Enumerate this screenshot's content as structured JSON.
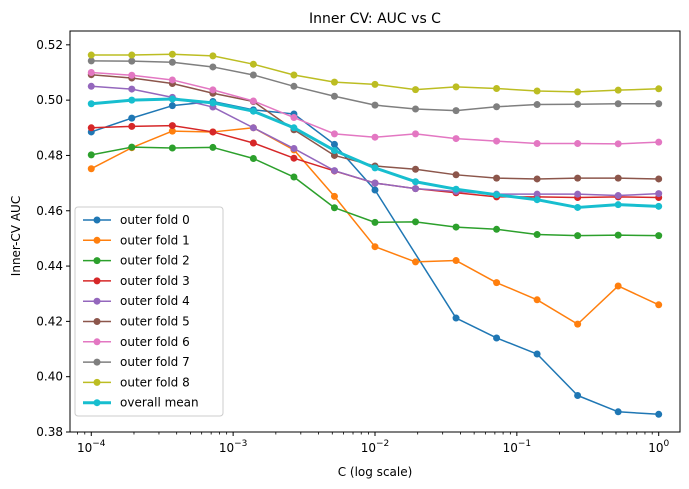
{
  "chart_data": {
    "type": "line",
    "title": "Inner CV: AUC vs C",
    "xlabel": "C (log scale)",
    "ylabel": "Inner-CV AUC",
    "xscale": "log",
    "xlim": [
      7.08e-05,
      1.413
    ],
    "ylim": [
      0.38,
      0.525
    ],
    "x_ticks": [
      {
        "value": 0.0001,
        "base": "10",
        "exp": "−4"
      },
      {
        "value": 0.001,
        "base": "10",
        "exp": "−3"
      },
      {
        "value": 0.01,
        "base": "10",
        "exp": "−2"
      },
      {
        "value": 0.1,
        "base": "10",
        "exp": "−1"
      },
      {
        "value": 1,
        "base": "10",
        "exp": "0"
      }
    ],
    "y_ticks": [
      "0.38",
      "0.40",
      "0.42",
      "0.44",
      "0.46",
      "0.48",
      "0.50",
      "0.52"
    ],
    "grid": false,
    "legend_position": "lower-left",
    "x": [
      0.0001,
      0.000193,
      0.000373,
      0.00072,
      0.001389,
      0.002683,
      0.005179,
      0.01,
      0.019307,
      0.037276,
      0.071969,
      0.13895,
      0.26827,
      0.517947,
      1.0
    ],
    "series": [
      {
        "name": "outer fold 0",
        "color": "#1f77b4",
        "values": [
          0.4885,
          0.4935,
          0.498,
          0.4995,
          0.4965,
          0.495,
          0.484,
          0.4675,
          null,
          0.4212,
          0.414,
          0.4082,
          0.3932,
          0.3873,
          0.3864
        ]
      },
      {
        "name": "outer fold 1",
        "color": "#ff7f0e",
        "values": [
          0.4752,
          0.4828,
          0.4888,
          0.4885,
          0.49,
          0.482,
          0.4652,
          0.447,
          0.4415,
          0.442,
          0.434,
          0.4278,
          0.419,
          0.4328,
          0.426
        ]
      },
      {
        "name": "outer fold 2",
        "color": "#2ca02c",
        "values": [
          0.4802,
          0.483,
          0.4827,
          0.4829,
          0.4789,
          0.4722,
          0.4611,
          0.4558,
          0.456,
          0.4541,
          0.4533,
          0.4514,
          0.451,
          0.4512,
          0.451
        ]
      },
      {
        "name": "outer fold 3",
        "color": "#d62728",
        "values": [
          0.49,
          0.4905,
          0.4908,
          0.4885,
          0.4845,
          0.479,
          0.4744,
          0.47,
          0.468,
          0.4665,
          0.465,
          0.465,
          0.4648,
          0.465,
          0.4648
        ]
      },
      {
        "name": "outer fold 4",
        "color": "#9467bd",
        "values": [
          0.505,
          0.504,
          0.501,
          0.4975,
          0.49,
          0.4825,
          0.4745,
          0.47,
          0.468,
          0.467,
          0.466,
          0.466,
          0.466,
          0.4655,
          0.4662
        ]
      },
      {
        "name": "outer fold 5",
        "color": "#8c564b",
        "values": [
          0.5092,
          0.508,
          0.506,
          0.5025,
          0.4995,
          0.4893,
          0.48,
          0.4762,
          0.475,
          0.473,
          0.4718,
          0.4715,
          0.4718,
          0.4718,
          0.4715
        ]
      },
      {
        "name": "outer fold 6",
        "color": "#e377c2",
        "values": [
          0.51,
          0.509,
          0.5073,
          0.5037,
          0.4997,
          0.4937,
          0.4878,
          0.4866,
          0.4878,
          0.4861,
          0.4852,
          0.4843,
          0.4843,
          0.4842,
          0.4848
        ]
      },
      {
        "name": "outer fold 7",
        "color": "#7f7f7f",
        "values": [
          0.5142,
          0.5141,
          0.5137,
          0.512,
          0.5091,
          0.505,
          0.5014,
          0.4982,
          0.4968,
          0.4962,
          0.4976,
          0.4984,
          0.4985,
          0.4987,
          0.4987
        ]
      },
      {
        "name": "outer fold 8",
        "color": "#bcbd22",
        "values": [
          0.5163,
          0.5163,
          0.5166,
          0.516,
          0.513,
          0.5091,
          0.5065,
          0.5057,
          0.5038,
          0.5048,
          0.5042,
          0.5033,
          0.503,
          0.5036,
          0.5041
        ]
      },
      {
        "name": "overall mean",
        "color": "#17becf",
        "values": [
          0.4987,
          0.5,
          0.5004,
          0.499,
          0.496,
          0.49,
          0.4818,
          0.4755,
          0.4705,
          0.4678,
          0.4658,
          0.464,
          0.4612,
          0.4622,
          0.4616
        ]
      }
    ]
  }
}
